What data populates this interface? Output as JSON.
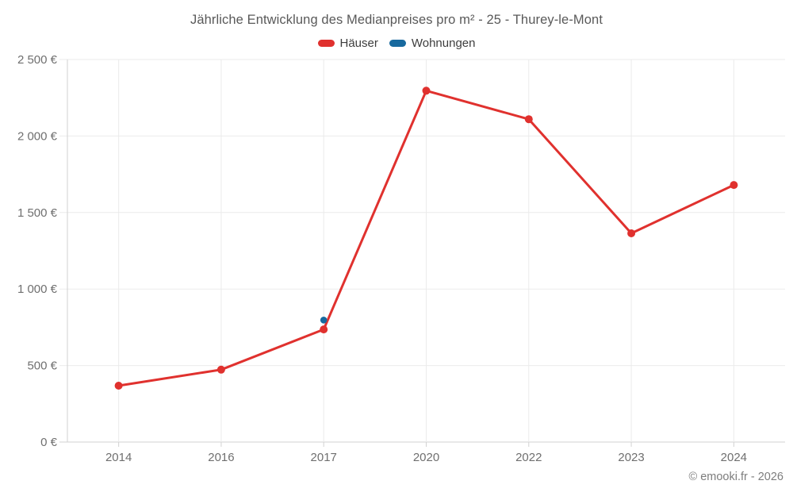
{
  "footer": {
    "copyright": "© emooki.fr - 2026"
  },
  "chart_data": {
    "type": "line",
    "title": "Jährliche Entwicklung des Medianpreises pro m² - 25 - Thurey-le-Mont",
    "categories": [
      "2014",
      "2016",
      "2017",
      "2020",
      "2022",
      "2023",
      "2024"
    ],
    "xlabel": "",
    "ylabel": "",
    "ylim": [
      0,
      2500
    ],
    "y_tick_step": 500,
    "y_tick_labels": [
      "0 €",
      "500 €",
      "1 000 €",
      "1 500 €",
      "2 000 €",
      "2 500 €"
    ],
    "grid": true,
    "legend_position": "top",
    "series": [
      {
        "name": "Häuser",
        "color": "#e0312e",
        "marker_radius": 5,
        "line_width": 3,
        "values": [
          368,
          473,
          736,
          2296,
          2110,
          1364,
          1680
        ]
      },
      {
        "name": "Wohnungen",
        "color": "#17699e",
        "marker_radius": 4.3,
        "line_width": 3,
        "values": [
          null,
          null,
          797,
          null,
          null,
          null,
          null
        ]
      }
    ],
    "style": {
      "grid_color": "#ebebeb",
      "axis_color": "#d2d2d2",
      "tick_label_color": "#6f6f6f"
    }
  }
}
